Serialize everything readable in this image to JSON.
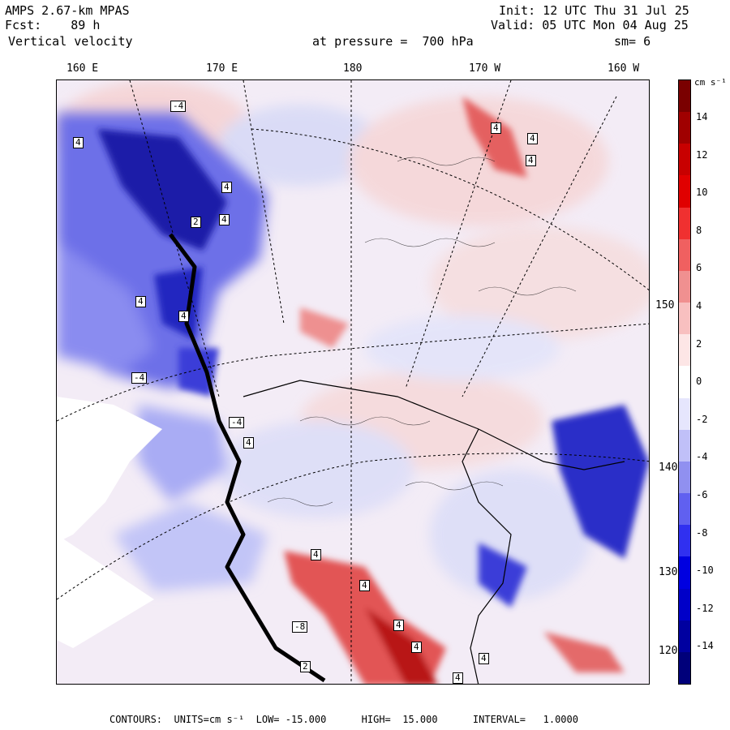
{
  "header": {
    "model": "AMPS 2.67-km MPAS",
    "forecast": "Fcst:    89 h",
    "field": "Vertical velocity",
    "init": "Init: 12 UTC Thu 31 Jul 25",
    "valid": "Valid: 05 UTC Mon 04 Aug 25",
    "pressure": "at pressure =  700 hPa",
    "smoothing": "sm= 6"
  },
  "longitude_labels": [
    "160 E",
    "170 E",
    "180",
    "170 W",
    "160 W"
  ],
  "latitude_labels": [
    "150 W",
    "140 W",
    "130 W",
    "120 W"
  ],
  "colorbar": {
    "units": "cm s⁻¹",
    "tick_labels": [
      "14",
      "12",
      "10",
      "8",
      "6",
      "4",
      "2",
      "0",
      "-2",
      "-4",
      "-6",
      "-8",
      "-10",
      "-12",
      "-14"
    ],
    "colors": [
      "#7a0000",
      "#a00000",
      "#c80000",
      "#e00000",
      "#f03030",
      "#f06060",
      "#f09090",
      "#f8c0c0",
      "#fde6e6",
      "#ffffff",
      "#e6e6fd",
      "#c0c0f8",
      "#9090f0",
      "#6060f0",
      "#3030f0",
      "#0000e0",
      "#0000c8",
      "#0000a0",
      "#00007a"
    ]
  },
  "footer": {
    "text": "CONTOURS:  UNITS=cm s⁻¹  LOW= -15.000      HIGH=  15.000      INTERVAL=   1.0000"
  },
  "map_labels": [
    "4",
    "4",
    "4",
    "4",
    "2",
    "4",
    "4",
    "-4",
    "4",
    "4",
    "-4",
    "-4",
    "4",
    "4",
    "4",
    "4",
    "4",
    "4",
    "4",
    "-8",
    "2"
  ]
}
